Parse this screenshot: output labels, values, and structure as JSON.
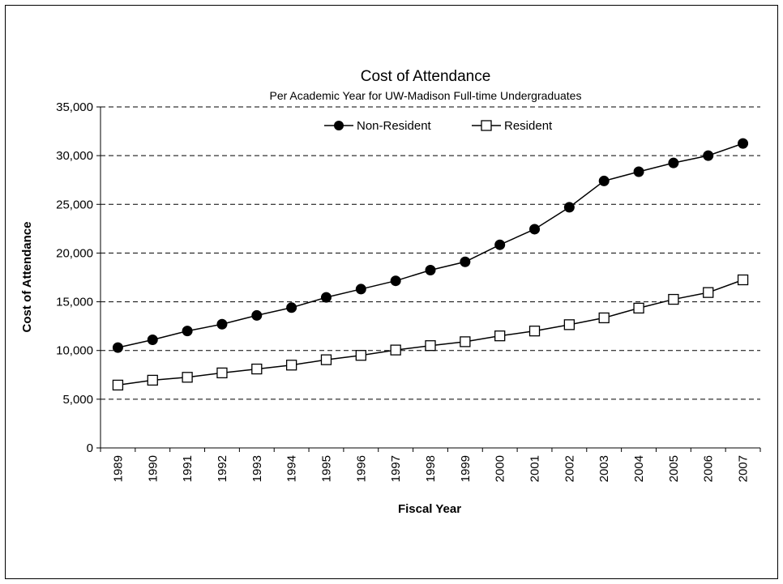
{
  "chart_data": {
    "type": "line",
    "title": "Cost of Attendance",
    "subtitle": "Per Academic Year for UW-Madison Full-time Undergraduates",
    "xlabel": "Fiscal Year",
    "ylabel": "Cost of Attendance",
    "ylim": [
      0,
      35000
    ],
    "yticks": [
      "0",
      "5,000",
      "10,000",
      "15,000",
      "20,000",
      "25,000",
      "30,000",
      "35,000"
    ],
    "ytick_values": [
      0,
      5000,
      10000,
      15000,
      20000,
      25000,
      30000,
      35000
    ],
    "categories": [
      "1989",
      "1990",
      "1991",
      "1992",
      "1993",
      "1994",
      "1995",
      "1996",
      "1997",
      "1998",
      "1999",
      "2000",
      "2001",
      "2002",
      "2003",
      "2004",
      "2005",
      "2006",
      "2007"
    ],
    "grid": "horizontal dashed",
    "legend_position": "top",
    "series": [
      {
        "name": "Non-Resident",
        "marker": "filled-circle",
        "values": [
          10300,
          11100,
          12000,
          12700,
          13600,
          14400,
          15450,
          16300,
          17150,
          18250,
          19100,
          20850,
          22450,
          24700,
          27400,
          28350,
          29250,
          30000,
          31250
        ]
      },
      {
        "name": "Resident",
        "marker": "open-square",
        "values": [
          6450,
          6950,
          7250,
          7700,
          8100,
          8500,
          9050,
          9500,
          10050,
          10500,
          10900,
          11500,
          12000,
          12650,
          13350,
          14350,
          15250,
          15950,
          17250
        ]
      }
    ]
  }
}
